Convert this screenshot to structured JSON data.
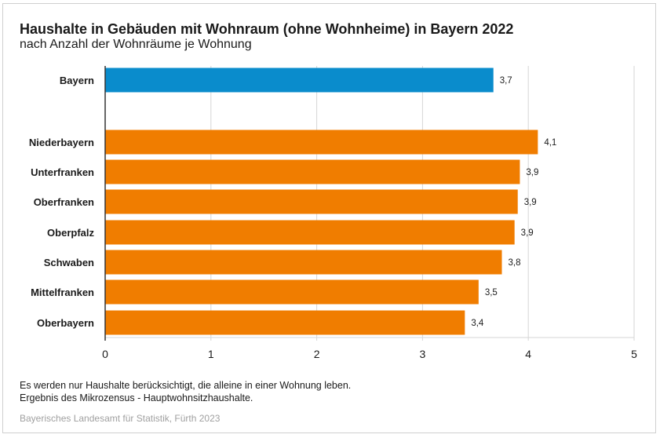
{
  "chart_data": {
    "type": "bar",
    "orientation": "horizontal",
    "title": "Haushalte in Gebäuden mit Wohnraum (ohne Wohnheime) in Bayern 2022",
    "subtitle": "nach Anzahl der Wohnräume je Wohnung",
    "xlabel": "",
    "ylabel": "",
    "xlim": [
      0,
      5
    ],
    "xticks": [
      "0",
      "1",
      "2",
      "3",
      "4",
      "5"
    ],
    "grid": true,
    "categories": [
      "Bayern",
      "Niederbayern",
      "Unterfranken",
      "Oberfranken",
      "Oberpfalz",
      "Schwaben",
      "Mittelfranken",
      "Oberbayern"
    ],
    "values": [
      3.67,
      4.09,
      3.92,
      3.9,
      3.87,
      3.75,
      3.53,
      3.4
    ],
    "labels": [
      "3,7",
      "4,1",
      "3,9",
      "3,9",
      "3,9",
      "3,8",
      "3,5",
      "3,4"
    ],
    "colors": [
      "#0a8ccc",
      "#f07d00",
      "#f07d00",
      "#f07d00",
      "#f07d00",
      "#f07d00",
      "#f07d00",
      "#f07d00"
    ]
  },
  "notes": [
    "Es werden nur Haushalte berücksichtigt, die alleine in einer Wohnung leben.",
    "Ergebnis des Mikrozensus - Hauptwohnsitzhaushalte."
  ],
  "source": "Bayerisches Landesamt für Statistik, Fürth 2023"
}
